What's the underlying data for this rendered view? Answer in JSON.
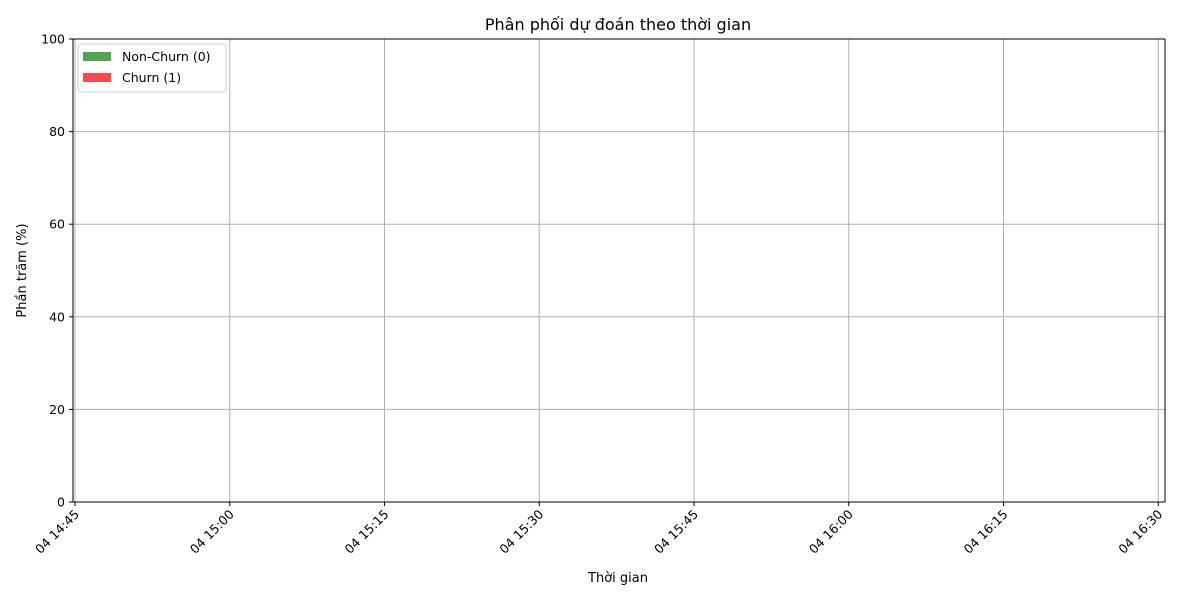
{
  "chart_data": {
    "type": "area",
    "title": "Phân phối dự đoán theo thời gian",
    "xlabel": "Thời gian",
    "ylabel": "Phần trăm (%)",
    "ylim": [
      0,
      100
    ],
    "yticks": [
      "0",
      "20",
      "40",
      "60",
      "80",
      "100"
    ],
    "xticks": [
      "04 14:45",
      "04 15:00",
      "04 15:15",
      "04 15:30",
      "04 15:45",
      "04 16:00",
      "04 16:15",
      "04 16:30"
    ],
    "grid": true,
    "legend_position": "top-left",
    "series": [
      {
        "name": "Non-Churn (0)",
        "color": "#52a352",
        "values": []
      },
      {
        "name": "Churn (1)",
        "color": "#f24c4c",
        "values": []
      }
    ]
  }
}
